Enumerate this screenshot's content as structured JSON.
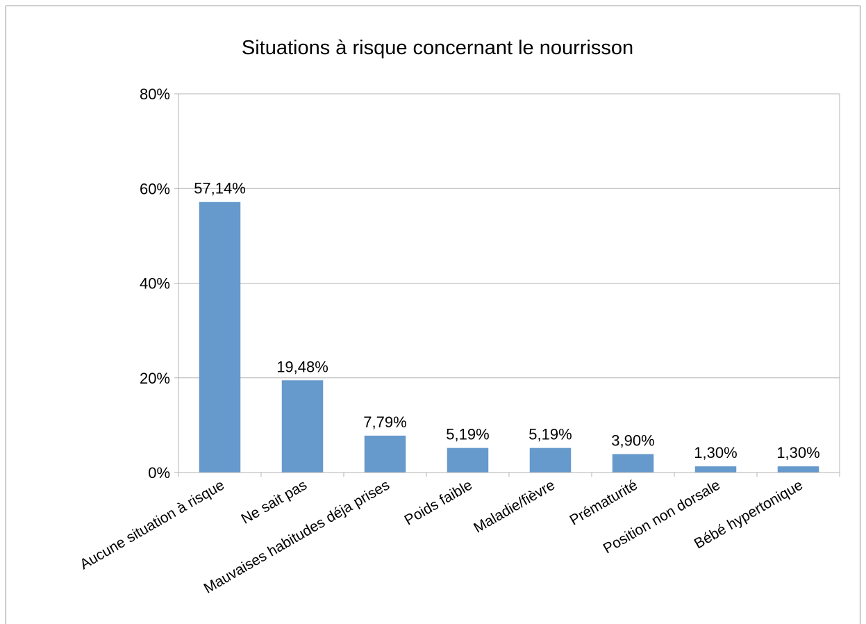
{
  "chart_data": {
    "type": "bar",
    "title": "Situations à risque concernant le nourrisson",
    "categories": [
      "Aucune situation à risque",
      "Ne sait pas",
      "Mauvaises habitudes déja prises",
      "Poids faible",
      "Maladie/fièvre",
      "Prématurité",
      "Position non dorsale",
      "Bébé hypertonique"
    ],
    "values": [
      57.14,
      19.48,
      7.79,
      5.19,
      5.19,
      3.9,
      1.3,
      1.3
    ],
    "data_labels": [
      "57,14%",
      "19,48%",
      "7,79%",
      "5,19%",
      "5,19%",
      "3,90%",
      "1,30%",
      "1,30%"
    ],
    "y_ticks": [
      0,
      20,
      40,
      60,
      80
    ],
    "y_tick_labels": [
      "0%",
      "20%",
      "40%",
      "60%",
      "80%"
    ],
    "ylim": [
      0,
      80
    ],
    "xlabel": "",
    "ylabel": "",
    "grid": true,
    "legend": "none",
    "bar_color": "#6699cc"
  }
}
